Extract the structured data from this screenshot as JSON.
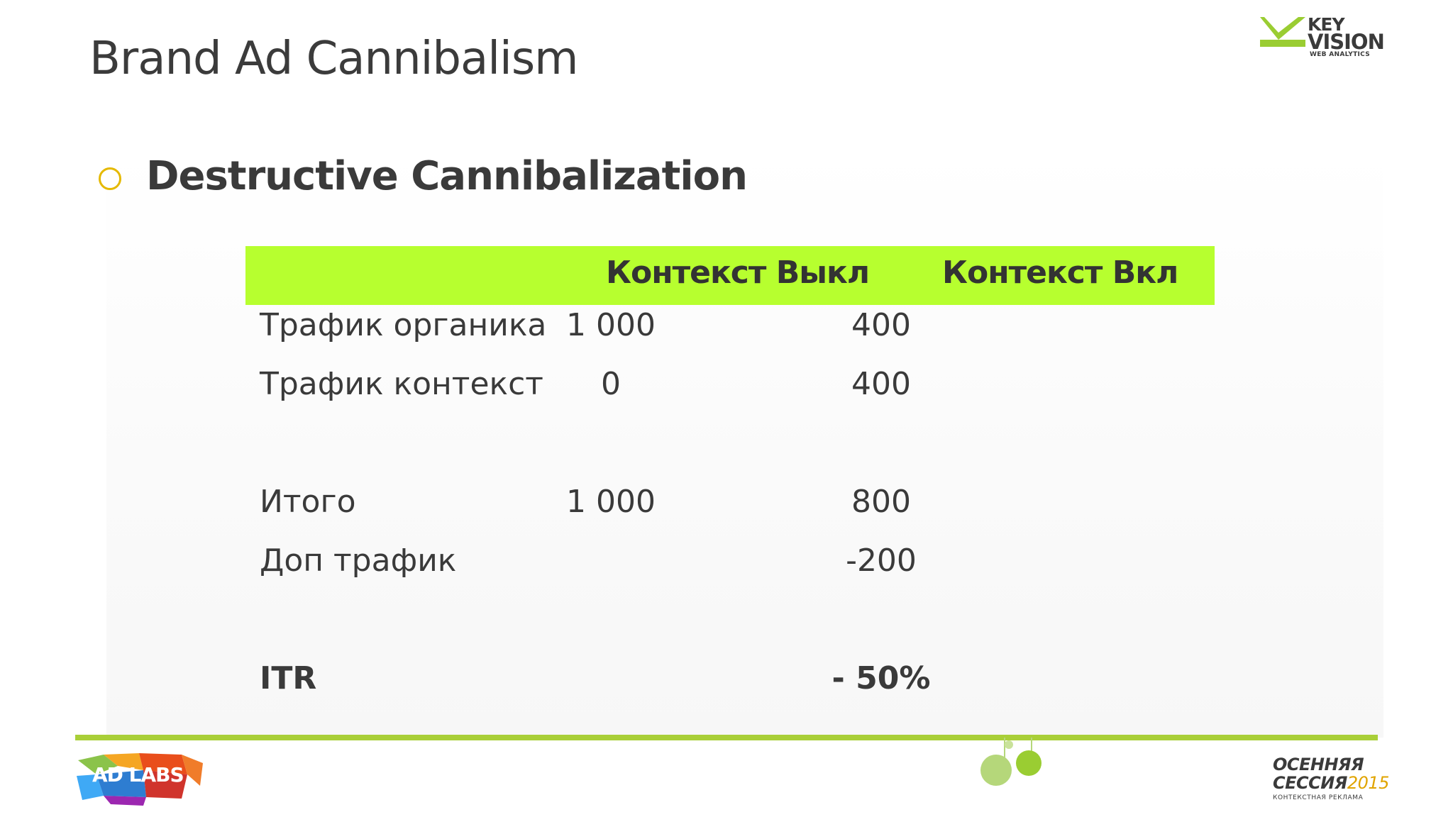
{
  "slide": {
    "title": "Brand Ad Cannibalism",
    "heading": "Destructive Cannibalization"
  },
  "logo_top": {
    "line1": "KEY",
    "line2": "VISION",
    "sub": "WEB ANALYTICS"
  },
  "table": {
    "headers": [
      "",
      "Контекст Выкл",
      "Контекст Вкл"
    ],
    "rows": [
      {
        "label": "Трафик органика",
        "off": "1 000",
        "on": "400",
        "bold": false
      },
      {
        "label": "Трафик контекст",
        "off": "0",
        "on": "400",
        "bold": false
      },
      {
        "label": "",
        "off": "",
        "on": "",
        "bold": false
      },
      {
        "label": "Итого",
        "off": "1 000",
        "on": "800",
        "bold": false
      },
      {
        "label": "Доп трафик",
        "off": "",
        "on": "-200",
        "bold": false
      },
      {
        "label": "",
        "off": "",
        "on": "",
        "bold": false
      },
      {
        "label": "ITR",
        "off": "",
        "on": "- 50%",
        "bold": true
      }
    ]
  },
  "footer": {
    "adlabs": "AD LABS",
    "session_line1": "ОСЕННЯЯ",
    "session_line2": "СЕССИЯ",
    "session_year": "2015",
    "session_sub": "КОНТЕКСТНАЯ РЕКЛАМА"
  },
  "colors": {
    "header_bg": "#b7ff2f",
    "bullet": "#e5b900",
    "divider": "#a9cf38",
    "logo_green": "#9acd32"
  }
}
